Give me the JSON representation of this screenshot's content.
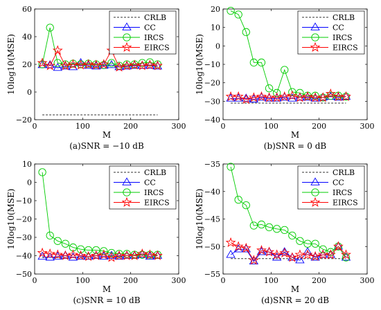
{
  "chart_data": [
    {
      "type": "line",
      "caption": "(a)SNR = −10 dB",
      "xlabel": "M",
      "ylabel": "10log10(MSE)",
      "xlim": [
        0,
        300
      ],
      "ylim": [
        -20,
        60
      ],
      "xticks": [
        0,
        100,
        200,
        300
      ],
      "yticks": [
        -20,
        0,
        20,
        40,
        60
      ],
      "legend": "top-right",
      "grid": false,
      "series": [
        {
          "name": "CRLB",
          "x": [
            16,
            256
          ],
          "values": [
            -16.5,
            -16.5
          ]
        },
        {
          "name": "CC",
          "x": [
            16,
            32,
            48,
            64,
            80,
            96,
            112,
            128,
            144,
            160,
            176,
            192,
            208,
            224,
            240,
            256
          ],
          "values": [
            19.5,
            19.5,
            17.5,
            18.5,
            18,
            21,
            19,
            18.5,
            19,
            19.5,
            18,
            18.5,
            19,
            19,
            19,
            18.5
          ]
        },
        {
          "name": "IRCS",
          "x": [
            16,
            32,
            48,
            64,
            80,
            96,
            112,
            128,
            144,
            160,
            176,
            192,
            208,
            224,
            240,
            256
          ],
          "values": [
            20,
            46.5,
            21,
            20,
            20.5,
            20,
            20.5,
            20,
            19.5,
            21,
            19,
            20,
            20,
            21,
            21.5,
            20
          ]
        },
        {
          "name": "EIRCS",
          "x": [
            16,
            32,
            48,
            64,
            80,
            96,
            112,
            128,
            144,
            160,
            176,
            192,
            208,
            224,
            240,
            256
          ],
          "values": [
            21,
            19,
            30,
            19,
            20,
            19.5,
            20,
            19.5,
            20,
            30,
            18,
            19,
            19.5,
            19,
            19.5,
            19
          ]
        }
      ]
    },
    {
      "type": "line",
      "caption": "(b)SNR = 0 dB",
      "xlabel": "M",
      "ylabel": "10log10(MSE)",
      "xlim": [
        0,
        300
      ],
      "ylim": [
        -40,
        20
      ],
      "xticks": [
        0,
        100,
        200,
        300
      ],
      "yticks": [
        -40,
        -30,
        -20,
        -10,
        0,
        10,
        20
      ],
      "legend": "top-right",
      "grid": false,
      "series": [
        {
          "name": "CRLB",
          "x": [
            16,
            256
          ],
          "values": [
            -31,
            -31
          ]
        },
        {
          "name": "CC",
          "x": [
            16,
            32,
            48,
            64,
            80,
            96,
            112,
            128,
            144,
            160,
            176,
            192,
            208,
            224,
            240,
            256
          ],
          "values": [
            -28.5,
            -28.5,
            -28.5,
            -29,
            -28,
            -28.5,
            -28.5,
            -28,
            -28.5,
            -28,
            -28,
            -28.5,
            -28,
            -27.5,
            -28,
            -27.5
          ]
        },
        {
          "name": "IRCS",
          "x": [
            16,
            32,
            48,
            64,
            80,
            96,
            112,
            128,
            144,
            160,
            176,
            192,
            208,
            224,
            240,
            256
          ],
          "values": [
            19,
            17,
            7.5,
            -9,
            -9,
            -23,
            -25.5,
            -13,
            -25,
            -25.5,
            -27,
            -27,
            -28,
            -27,
            -27,
            -27.5
          ]
        },
        {
          "name": "EIRCS",
          "x": [
            16,
            32,
            48,
            64,
            80,
            96,
            112,
            128,
            144,
            160,
            176,
            192,
            208,
            224,
            240,
            256
          ],
          "values": [
            -27.5,
            -27.5,
            -29,
            -28,
            -27.5,
            -28,
            -28,
            -27.5,
            -27,
            -28,
            -27.5,
            -28,
            -28,
            -26,
            -27.5,
            -27.5
          ]
        }
      ]
    },
    {
      "type": "line",
      "caption": "(c)SNR = 10 dB",
      "xlabel": "M",
      "ylabel": "10log10(MSE)",
      "xlim": [
        0,
        300
      ],
      "ylim": [
        -50,
        10
      ],
      "xticks": [
        0,
        100,
        200,
        300
      ],
      "yticks": [
        -50,
        -40,
        -30,
        -20,
        -10,
        0,
        10
      ],
      "legend": "top-right",
      "grid": false,
      "series": [
        {
          "name": "CRLB",
          "x": [
            16,
            256
          ],
          "values": [
            -41,
            -41
          ]
        },
        {
          "name": "CC",
          "x": [
            16,
            32,
            48,
            64,
            80,
            96,
            112,
            128,
            144,
            160,
            176,
            192,
            208,
            224,
            240,
            256
          ],
          "values": [
            -40.5,
            -41,
            -40.5,
            -40,
            -41,
            -40.5,
            -40.5,
            -40,
            -40.5,
            -40,
            -40.5,
            -40,
            -40,
            -39.5,
            -40.5,
            -40
          ]
        },
        {
          "name": "IRCS",
          "x": [
            16,
            32,
            48,
            64,
            80,
            96,
            112,
            128,
            144,
            160,
            176,
            192,
            208,
            224,
            240,
            256
          ],
          "values": [
            5.5,
            -29,
            -32,
            -33.5,
            -35.5,
            -36.5,
            -37,
            -37,
            -37.5,
            -38.5,
            -39,
            -39,
            -39.5,
            -39.5,
            -39.5,
            -39.5
          ]
        },
        {
          "name": "EIRCS",
          "x": [
            16,
            32,
            48,
            64,
            80,
            96,
            112,
            128,
            144,
            160,
            176,
            192,
            208,
            224,
            240,
            256
          ],
          "values": [
            -38.5,
            -39,
            -39.5,
            -40,
            -39.5,
            -40,
            -40.5,
            -40,
            -39.5,
            -41,
            -40,
            -40,
            -40,
            -39,
            -39.5,
            -40
          ]
        }
      ]
    },
    {
      "type": "line",
      "caption": "(d)SNR = 20 dB",
      "xlabel": "M",
      "ylabel": "10log10(MSE)",
      "xlim": [
        0,
        300
      ],
      "ylim": [
        -55,
        -35
      ],
      "xticks": [
        0,
        100,
        200,
        300
      ],
      "yticks": [
        -55,
        -50,
        -45,
        -40,
        -35
      ],
      "legend": "top-right",
      "grid": false,
      "series": [
        {
          "name": "CRLB",
          "x": [
            16,
            256
          ],
          "values": [
            -52.2,
            -52.2
          ]
        },
        {
          "name": "CC",
          "x": [
            16,
            32,
            48,
            64,
            80,
            96,
            112,
            128,
            144,
            160,
            176,
            192,
            208,
            224,
            240,
            256
          ],
          "values": [
            -51.5,
            -50.5,
            -50.5,
            -52.7,
            -51,
            -51,
            -52,
            -51,
            -52,
            -52.5,
            -51,
            -52,
            -51.5,
            -51.5,
            -50,
            -52
          ]
        },
        {
          "name": "IRCS",
          "x": [
            16,
            32,
            48,
            64,
            80,
            96,
            112,
            128,
            144,
            160,
            176,
            192,
            208,
            224,
            240,
            256
          ],
          "values": [
            -35.5,
            -41.5,
            -42.5,
            -46.2,
            -46,
            -46.5,
            -46.8,
            -47,
            -48,
            -49,
            -49.5,
            -49.5,
            -50.5,
            -51,
            -50,
            -52
          ]
        },
        {
          "name": "EIRCS",
          "x": [
            16,
            32,
            48,
            64,
            80,
            96,
            112,
            128,
            144,
            160,
            176,
            192,
            208,
            224,
            240,
            256
          ],
          "values": [
            -49.3,
            -50,
            -50.3,
            -52.5,
            -50.7,
            -51,
            -51.5,
            -51.2,
            -52,
            -51.5,
            -51.5,
            -51.8,
            -51.5,
            -51.5,
            -50,
            -51.5
          ]
        }
      ]
    }
  ],
  "colors": {
    "CRLB": "#333333",
    "CC": "#0000ff",
    "IRCS": "#00cc00",
    "EIRCS": "#ff0000"
  },
  "markers": {
    "CRLB": "none",
    "CC": "triangle",
    "IRCS": "circle",
    "EIRCS": "star"
  }
}
